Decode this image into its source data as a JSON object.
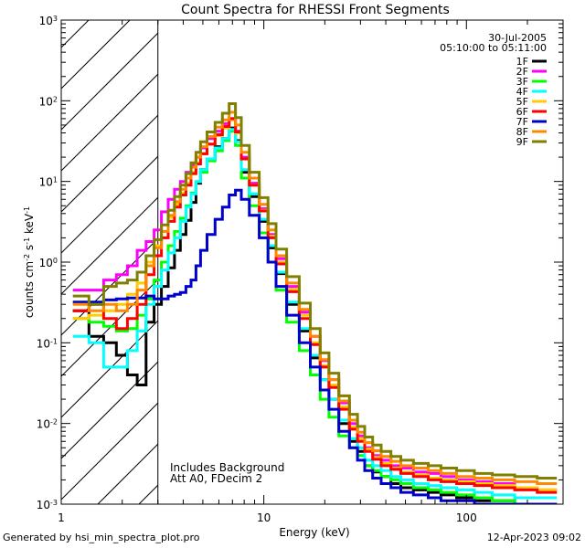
{
  "chart_data": {
    "type": "line",
    "title": "Count Spectra for RHESSI Front Segments",
    "xlabel": "Energy (keV)",
    "ylabel": "counts cm",
    "ylabel_sup1": "-2",
    "ylabel_mid": " s",
    "ylabel_sup2": "-1",
    "ylabel_end": " keV",
    "ylabel_sup3": "-1",
    "xscale": "log",
    "yscale": "log",
    "xlim": [
      1.0,
      300.0
    ],
    "ylim": [
      0.001,
      1000
    ],
    "x_ticklabels": [
      "1",
      "10",
      "100"
    ],
    "y_tick_mantissa": "10",
    "y_tick_exponents": [
      "-3",
      "-2",
      "-1",
      "0",
      "1",
      "2",
      "3"
    ],
    "date": "30-Jul-2005",
    "time_range": "05:10:00 to 05:11:00",
    "annotations": [
      "Includes Background",
      "Att A0, FDecim 2"
    ],
    "excluded_region": {
      "xmin": 1.0,
      "xmax": 3.0
    },
    "energy_bins": [
      1.25,
      1.5,
      1.75,
      2.0,
      2.25,
      2.5,
      2.75,
      3.0,
      3.25,
      3.5,
      3.75,
      4.0,
      4.25,
      4.5,
      4.75,
      5.0,
      5.5,
      6.0,
      6.5,
      7.0,
      7.5,
      8.0,
      9.0,
      10.0,
      11.0,
      12.0,
      14.0,
      16.0,
      18.0,
      20.0,
      22.0,
      25.0,
      28.0,
      30.0,
      33.0,
      36.0,
      40.0,
      45.0,
      50.0,
      60.0,
      70.0,
      80.0,
      100.0,
      120.0,
      150.0,
      200.0,
      250.0
    ],
    "series": [
      {
        "name": "1F",
        "color": "#000000",
        "values": [
          0.25,
          0.12,
          0.1,
          0.07,
          0.04,
          0.03,
          0.18,
          0.3,
          0.5,
          0.85,
          1.4,
          2.2,
          3.3,
          5.5,
          9.5,
          14,
          19,
          27,
          34,
          46,
          32,
          13,
          6.5,
          3.2,
          1.5,
          0.72,
          0.3,
          0.14,
          0.065,
          0.035,
          0.02,
          0.01,
          0.006,
          0.0045,
          0.003,
          0.0025,
          0.0022,
          0.0018,
          0.0016,
          0.0015,
          0.0014,
          0.0013,
          0.0012,
          0.0011,
          0.0011,
          0.001,
          0.001
        ]
      },
      {
        "name": "2F",
        "color": "#ff00ff",
        "values": [
          0.45,
          0.45,
          0.6,
          0.7,
          0.9,
          1.4,
          1.8,
          2.5,
          4.2,
          6.0,
          8.0,
          10.0,
          13.0,
          16.0,
          20.0,
          26.0,
          34.0,
          42.0,
          52.0,
          60.0,
          42.0,
          20.0,
          9.5,
          4.6,
          2.2,
          1.1,
          0.5,
          0.24,
          0.12,
          0.06,
          0.035,
          0.018,
          0.01,
          0.007,
          0.005,
          0.004,
          0.0035,
          0.003,
          0.0028,
          0.0025,
          0.0024,
          0.0022,
          0.002,
          0.0019,
          0.0018,
          0.0016,
          0.0015
        ]
      },
      {
        "name": "3F",
        "color": "#00ff00",
        "values": [
          0.2,
          0.18,
          0.16,
          0.14,
          0.15,
          0.22,
          0.35,
          0.6,
          1.0,
          1.6,
          2.4,
          3.5,
          5.0,
          7.2,
          10.0,
          13.0,
          18.0,
          24.0,
          32.0,
          42.0,
          28.0,
          11.0,
          5.0,
          2.3,
          1.0,
          0.45,
          0.18,
          0.08,
          0.04,
          0.02,
          0.012,
          0.007,
          0.005,
          0.004,
          0.003,
          0.0026,
          0.0022,
          0.002,
          0.0018,
          0.0016,
          0.0015,
          0.0014,
          0.0013,
          0.0012,
          0.0011,
          0.001,
          0.001
        ]
      },
      {
        "name": "4F",
        "color": "#00ffff",
        "values": [
          0.12,
          0.1,
          0.05,
          0.05,
          0.08,
          0.14,
          0.3,
          0.5,
          0.8,
          1.3,
          2.0,
          3.2,
          4.8,
          7.0,
          10.0,
          14.0,
          19.0,
          26.0,
          34.0,
          44.0,
          31.0,
          14.0,
          7.0,
          3.4,
          1.6,
          0.75,
          0.32,
          0.15,
          0.07,
          0.035,
          0.02,
          0.011,
          0.0065,
          0.005,
          0.0035,
          0.003,
          0.0026,
          0.0022,
          0.002,
          0.0018,
          0.0017,
          0.0016,
          0.0015,
          0.0014,
          0.0013,
          0.0012,
          0.0012
        ]
      },
      {
        "name": "5F",
        "color": "#ffcc00",
        "values": [
          0.2,
          0.22,
          0.25,
          0.3,
          0.4,
          0.55,
          1.0,
          1.6,
          2.4,
          3.6,
          5.2,
          7.2,
          9.5,
          13.0,
          17.0,
          22.0,
          29.0,
          37.0,
          46.0,
          58.0,
          40.0,
          19.0,
          9.0,
          4.4,
          2.1,
          1.0,
          0.46,
          0.22,
          0.1,
          0.052,
          0.03,
          0.016,
          0.009,
          0.0065,
          0.0048,
          0.0038,
          0.0032,
          0.0028,
          0.0025,
          0.0023,
          0.0021,
          0.002,
          0.0019,
          0.0018,
          0.0017,
          0.0016,
          0.0015
        ]
      },
      {
        "name": "6F",
        "color": "#ff0000",
        "values": [
          0.25,
          0.3,
          0.2,
          0.15,
          0.2,
          0.3,
          0.7,
          1.2,
          2.0,
          3.2,
          4.8,
          6.8,
          9.0,
          12.5,
          16.5,
          22.0,
          29.0,
          38.0,
          48.0,
          60.0,
          41.0,
          19.0,
          9.0,
          4.3,
          2.0,
          0.95,
          0.43,
          0.2,
          0.095,
          0.05,
          0.028,
          0.015,
          0.0085,
          0.006,
          0.0045,
          0.0036,
          0.003,
          0.0027,
          0.0024,
          0.0022,
          0.002,
          0.0019,
          0.0018,
          0.0017,
          0.0016,
          0.0015,
          0.0014
        ]
      },
      {
        "name": "7F",
        "color": "#0000cc",
        "values": [
          0.32,
          0.32,
          0.34,
          0.35,
          0.36,
          0.36,
          0.38,
          0.35,
          0.35,
          0.38,
          0.4,
          0.42,
          0.5,
          0.6,
          0.9,
          1.4,
          2.2,
          3.4,
          4.8,
          6.8,
          7.8,
          6.0,
          3.8,
          2.0,
          1.0,
          0.5,
          0.22,
          0.1,
          0.05,
          0.026,
          0.015,
          0.008,
          0.005,
          0.0035,
          0.0026,
          0.0021,
          0.0018,
          0.0016,
          0.0014,
          0.0013,
          0.0012,
          0.0011,
          0.0011,
          0.001,
          0.001,
          0.001,
          0.001
        ]
      },
      {
        "name": "8F",
        "color": "#ff8800",
        "values": [
          0.3,
          0.25,
          0.3,
          0.25,
          0.3,
          0.45,
          0.9,
          1.5,
          2.4,
          3.8,
          5.6,
          8.0,
          11.0,
          15.0,
          20.0,
          27.0,
          36.0,
          47.0,
          58.0,
          72.0,
          50.0,
          23.0,
          11.0,
          5.2,
          2.5,
          1.2,
          0.55,
          0.26,
          0.12,
          0.062,
          0.035,
          0.019,
          0.011,
          0.0078,
          0.0058,
          0.0046,
          0.0039,
          0.0034,
          0.003,
          0.0028,
          0.0026,
          0.0024,
          0.0022,
          0.0021,
          0.002,
          0.0019,
          0.0018
        ]
      },
      {
        "name": "9F",
        "color": "#808000",
        "values": [
          0.38,
          0.3,
          0.5,
          0.55,
          0.6,
          0.75,
          1.2,
          1.9,
          2.9,
          4.4,
          6.5,
          9.0,
          12.5,
          17.0,
          23.0,
          31.0,
          41.0,
          54.0,
          70.0,
          92.0,
          62.0,
          28.0,
          13.0,
          6.3,
          3.0,
          1.45,
          0.66,
          0.31,
          0.15,
          0.075,
          0.042,
          0.022,
          0.013,
          0.0092,
          0.0068,
          0.0054,
          0.0045,
          0.0039,
          0.0035,
          0.0032,
          0.003,
          0.0028,
          0.0026,
          0.0024,
          0.0023,
          0.0022,
          0.0021
        ]
      }
    ]
  },
  "footer": {
    "generated_by": "Generated by hsi_min_spectra_plot.pro",
    "timestamp": "12-Apr-2023 09:02"
  }
}
